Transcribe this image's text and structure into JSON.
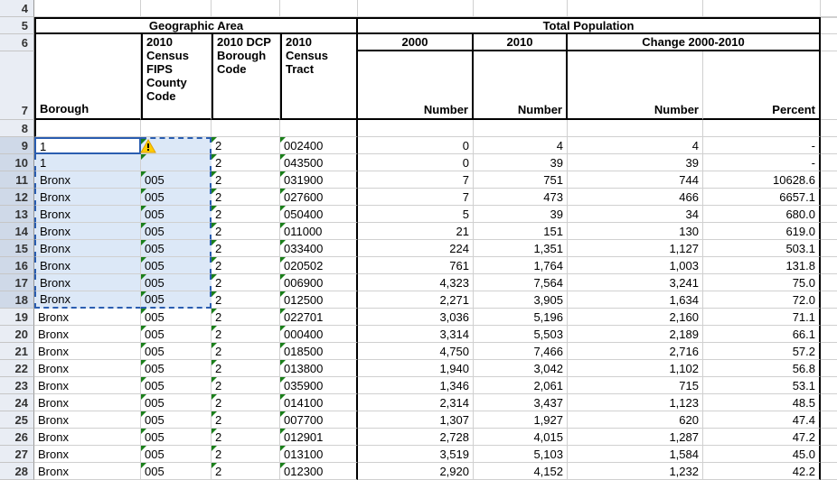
{
  "colors": {
    "rowhead_bg": "#e9edf4",
    "rowhead_sel_bg": "#cfd9e8",
    "grid_line": "#d0d0d0",
    "sel_bg": "#dce8f7",
    "sel_border": "#2a5db0",
    "tracer_green": "#1a7f1a",
    "warn_yellow": "#ffcc00",
    "warn_border": "#e0a000"
  },
  "row_headers": [
    "4",
    "5",
    "6",
    "7",
    "8",
    "9",
    "10",
    "11",
    "12",
    "13",
    "14",
    "15",
    "16",
    "17",
    "18",
    "19",
    "20",
    "21",
    "22",
    "23",
    "24",
    "25",
    "26",
    "27",
    "28"
  ],
  "headers": {
    "geo_area": "Geographic Area",
    "total_pop": "Total Population",
    "y2000": "2000",
    "y2010": "2010",
    "change": "Change 2000-2010",
    "borough": "Borough",
    "fips": "2010 Census FIPS County Code",
    "dcp": "2010 DCP Borough Code",
    "tract": "2010 Census Tract",
    "number": "Number",
    "percent": "Percent"
  },
  "rows": [
    {
      "b": "1",
      "f": "",
      "d": "2",
      "t": "002400",
      "n00": "0",
      "n10": "4",
      "cn": "4",
      "pc": "-"
    },
    {
      "b": "1",
      "f": "",
      "d": "2",
      "t": "043500",
      "n00": "0",
      "n10": "39",
      "cn": "39",
      "pc": "-"
    },
    {
      "b": "Bronx",
      "f": "005",
      "d": "2",
      "t": "031900",
      "n00": "7",
      "n10": "751",
      "cn": "744",
      "pc": "10628.6"
    },
    {
      "b": "Bronx",
      "f": "005",
      "d": "2",
      "t": "027600",
      "n00": "7",
      "n10": "473",
      "cn": "466",
      "pc": "6657.1"
    },
    {
      "b": "Bronx",
      "f": "005",
      "d": "2",
      "t": "050400",
      "n00": "5",
      "n10": "39",
      "cn": "34",
      "pc": "680.0"
    },
    {
      "b": "Bronx",
      "f": "005",
      "d": "2",
      "t": "011000",
      "n00": "21",
      "n10": "151",
      "cn": "130",
      "pc": "619.0"
    },
    {
      "b": "Bronx",
      "f": "005",
      "d": "2",
      "t": "033400",
      "n00": "224",
      "n10": "1,351",
      "cn": "1,127",
      "pc": "503.1"
    },
    {
      "b": "Bronx",
      "f": "005",
      "d": "2",
      "t": "020502",
      "n00": "761",
      "n10": "1,764",
      "cn": "1,003",
      "pc": "131.8"
    },
    {
      "b": "Bronx",
      "f": "005",
      "d": "2",
      "t": "006900",
      "n00": "4,323",
      "n10": "7,564",
      "cn": "3,241",
      "pc": "75.0"
    },
    {
      "b": "Bronx",
      "f": "005",
      "d": "2",
      "t": "012500",
      "n00": "2,271",
      "n10": "3,905",
      "cn": "1,634",
      "pc": "72.0"
    },
    {
      "b": "Bronx",
      "f": "005",
      "d": "2",
      "t": "022701",
      "n00": "3,036",
      "n10": "5,196",
      "cn": "2,160",
      "pc": "71.1"
    },
    {
      "b": "Bronx",
      "f": "005",
      "d": "2",
      "t": "000400",
      "n00": "3,314",
      "n10": "5,503",
      "cn": "2,189",
      "pc": "66.1"
    },
    {
      "b": "Bronx",
      "f": "005",
      "d": "2",
      "t": "018500",
      "n00": "4,750",
      "n10": "7,466",
      "cn": "2,716",
      "pc": "57.2"
    },
    {
      "b": "Bronx",
      "f": "005",
      "d": "2",
      "t": "013800",
      "n00": "1,940",
      "n10": "3,042",
      "cn": "1,102",
      "pc": "56.8"
    },
    {
      "b": "Bronx",
      "f": "005",
      "d": "2",
      "t": "035900",
      "n00": "1,346",
      "n10": "2,061",
      "cn": "715",
      "pc": "53.1"
    },
    {
      "b": "Bronx",
      "f": "005",
      "d": "2",
      "t": "014100",
      "n00": "2,314",
      "n10": "3,437",
      "cn": "1,123",
      "pc": "48.5"
    },
    {
      "b": "Bronx",
      "f": "005",
      "d": "2",
      "t": "007700",
      "n00": "1,307",
      "n10": "1,927",
      "cn": "620",
      "pc": "47.4"
    },
    {
      "b": "Bronx",
      "f": "005",
      "d": "2",
      "t": "012901",
      "n00": "2,728",
      "n10": "4,015",
      "cn": "1,287",
      "pc": "47.2"
    },
    {
      "b": "Bronx",
      "f": "005",
      "d": "2",
      "t": "013100",
      "n00": "3,519",
      "n10": "5,103",
      "cn": "1,584",
      "pc": "45.0"
    },
    {
      "b": "Bronx",
      "f": "005",
      "d": "2",
      "t": "012300",
      "n00": "2,920",
      "n10": "4,152",
      "cn": "1,232",
      "pc": "42.2"
    }
  ],
  "selection": {
    "top_row": 9,
    "bottom_row": 18,
    "left_col": 1,
    "right_col": 2
  }
}
